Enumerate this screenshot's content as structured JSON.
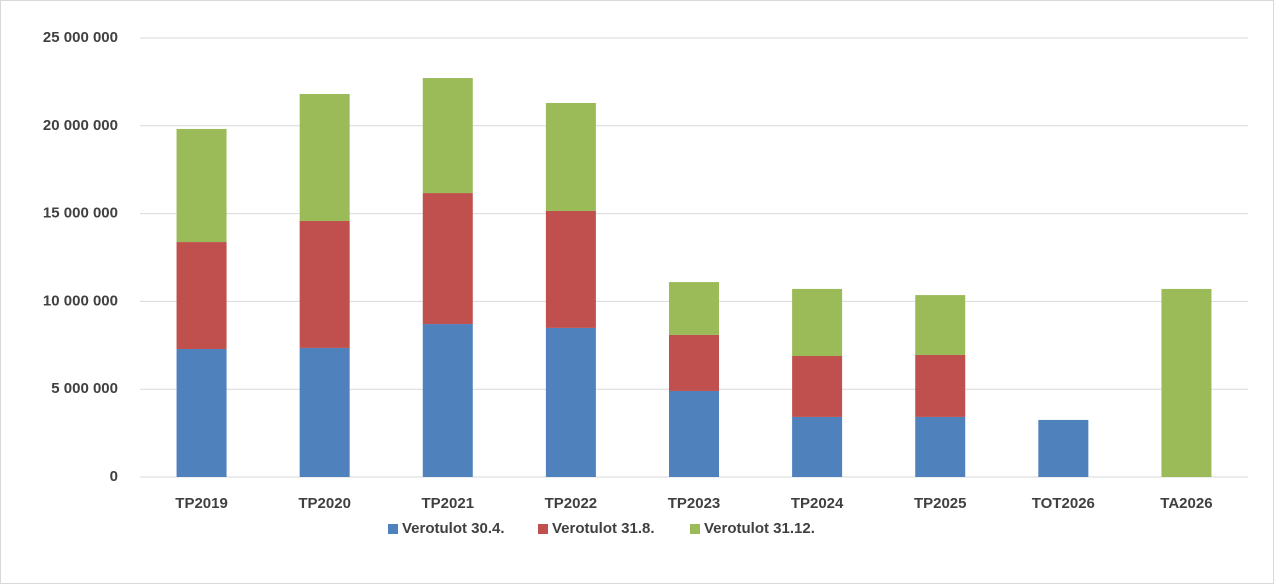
{
  "chart_data": {
    "type": "stacked_bar",
    "categories": [
      "TP2019",
      "TP2020",
      "TP2021",
      "TP2022",
      "TP2023",
      "TP2024",
      "TP2025",
      "TOT2026",
      "TA2026"
    ],
    "series": [
      {
        "name": "Verotulot 30.4.",
        "color": "#4f81bd",
        "values": [
          7290000,
          7350000,
          8710000,
          8490000,
          4900000,
          3420000,
          3420000,
          3250000,
          null
        ]
      },
      {
        "name": "Verotulot 31.8.",
        "color": "#c0504d",
        "values": [
          6090000,
          7230000,
          7460000,
          6660000,
          3190000,
          3470000,
          3530000,
          null,
          null
        ]
      },
      {
        "name": "Verotulot 31.12.",
        "color": "#9bbb59",
        "values": [
          6440000,
          7230000,
          6550000,
          6150000,
          3010000,
          3820000,
          3410000,
          null,
          10710000
        ]
      }
    ],
    "ylim": [
      0,
      25000000
    ],
    "yticks": [
      {
        "value": 0,
        "label": "0"
      },
      {
        "value": 5000000,
        "label": "5 000 000"
      },
      {
        "value": 10000000,
        "label": "10 000 000"
      },
      {
        "value": 15000000,
        "label": "15 000 000"
      },
      {
        "value": 20000000,
        "label": "20 000 000"
      },
      {
        "value": 25000000,
        "label": "25 000 000"
      }
    ],
    "grid": true,
    "legend": "bottom"
  }
}
